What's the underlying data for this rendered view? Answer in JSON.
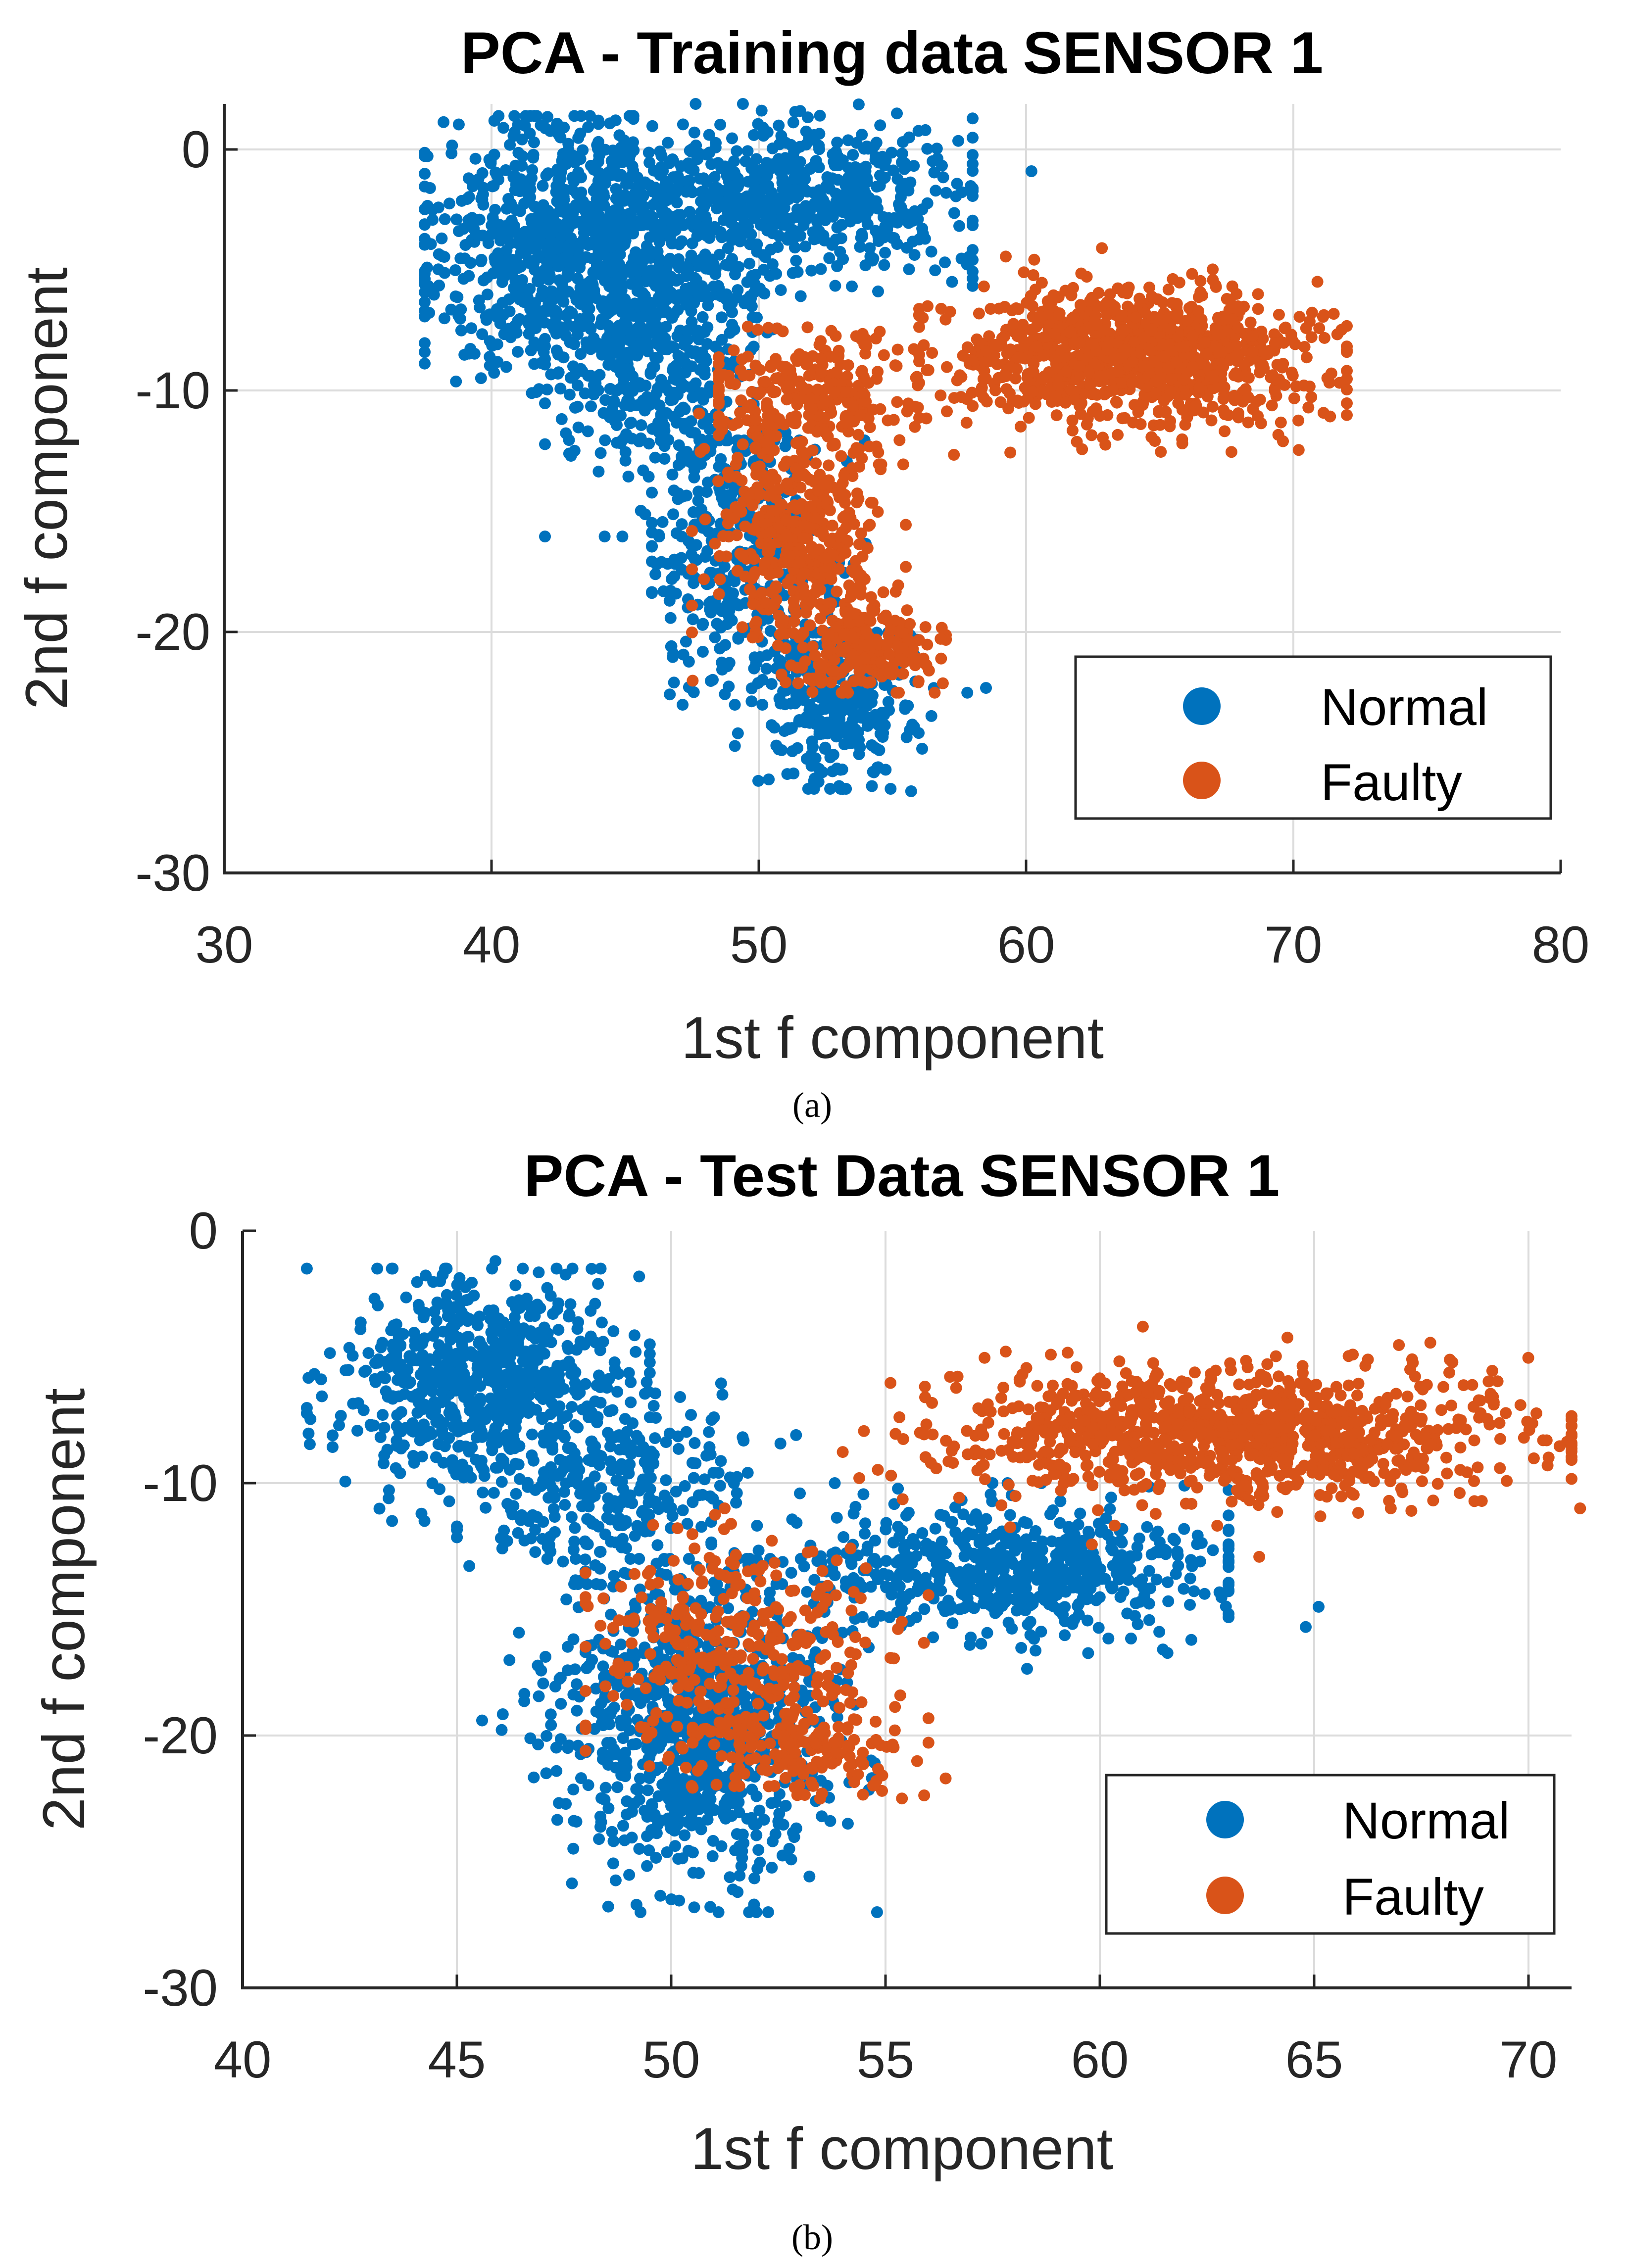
{
  "colors": {
    "normal": "#0072BD",
    "faulty": "#D95319"
  },
  "chart_data": [
    {
      "id": "a",
      "type": "scatter",
      "title": "PCA - Training data SENSOR 1",
      "xlabel": "1st f component",
      "ylabel": "2nd f component",
      "xlim": [
        30,
        80
      ],
      "ylim": [
        -30,
        2
      ],
      "xticks": [
        30,
        40,
        50,
        60,
        70,
        80
      ],
      "yticks": [
        0,
        -10,
        -20,
        -30
      ],
      "grid": true,
      "legend": {
        "placement": "bottom-right",
        "entries": [
          "Normal",
          "Faulty"
        ]
      },
      "caption": "(a)",
      "series": [
        {
          "name": "Normal",
          "color": "#0072BD",
          "clusters": [
            {
              "cx": 43,
              "cy": -4,
              "sx": 2.8,
              "sy": 2.6,
              "n": 900,
              "xr": [
                37.5,
                49
              ],
              "yr": [
                -12,
                1.5
              ]
            },
            {
              "cx": 51,
              "cy": -2,
              "sx": 3.5,
              "sy": 1.6,
              "n": 650,
              "xr": [
                44,
                58
              ],
              "yr": [
                -6,
                2
              ]
            },
            {
              "cx": 46.5,
              "cy": -9,
              "sx": 2,
              "sy": 3,
              "n": 400,
              "xr": [
                42,
                51
              ],
              "yr": [
                -16,
                -3
              ]
            },
            {
              "cx": 49.5,
              "cy": -17,
              "sx": 1.8,
              "sy": 3,
              "n": 350,
              "xr": [
                46,
                54
              ],
              "yr": [
                -23,
                -12
              ]
            },
            {
              "cx": 53,
              "cy": -23,
              "sx": 1.5,
              "sy": 1.7,
              "n": 300,
              "xr": [
                49,
                57
              ],
              "yr": [
                -26.5,
                -20
              ]
            }
          ],
          "points": [
            {
              "x": 58.5,
              "y": -22.3
            },
            {
              "x": 57.8,
              "y": -22.5
            },
            {
              "x": 55.7,
              "y": -26.6
            },
            {
              "x": 60.2,
              "y": -0.8
            },
            {
              "x": 37.7,
              "y": -1.5
            }
          ]
        },
        {
          "name": "Faulty",
          "color": "#D95319",
          "clusters": [
            {
              "cx": 64,
              "cy": -8.5,
              "sx": 3.3,
              "sy": 1.4,
              "n": 1000,
              "xr": [
                56,
                72
              ],
              "yr": [
                -13.5,
                -4
              ]
            },
            {
              "cx": 52,
              "cy": -10,
              "sx": 2,
              "sy": 1.4,
              "n": 250,
              "xr": [
                48.5,
                57
              ],
              "yr": [
                -13,
                -6
              ]
            },
            {
              "cx": 51.5,
              "cy": -16,
              "sx": 1.5,
              "sy": 2.4,
              "n": 450,
              "xr": [
                47.5,
                55.5
              ],
              "yr": [
                -22,
                -10
              ]
            },
            {
              "cx": 54,
              "cy": -20.5,
              "sx": 1.4,
              "sy": 1,
              "n": 200,
              "xr": [
                51,
                57
              ],
              "yr": [
                -22.5,
                -18
              ]
            }
          ],
          "points": [
            {
              "x": 71.8,
              "y": -7.4
            },
            {
              "x": 70.9,
              "y": -5.4
            },
            {
              "x": 70.2,
              "y": -12.4
            },
            {
              "x": 57.3,
              "y": -12.6
            }
          ]
        }
      ]
    },
    {
      "id": "b",
      "type": "scatter",
      "title": "PCA - Test Data SENSOR 1",
      "xlabel": "1st f component",
      "ylabel": "2nd f component",
      "xlim": [
        40,
        71
      ],
      "ylim": [
        -30,
        0
      ],
      "xticks": [
        40,
        45,
        50,
        55,
        60,
        65,
        70
      ],
      "yticks": [
        0,
        -10,
        -20,
        -30
      ],
      "grid": true,
      "legend": {
        "placement": "bottom-right",
        "entries": [
          "Normal",
          "Faulty"
        ]
      },
      "caption": "(b)",
      "series": [
        {
          "name": "Normal",
          "color": "#0072BD",
          "clusters": [
            {
              "cx": 45.5,
              "cy": -6,
              "sx": 1.6,
              "sy": 2,
              "n": 700,
              "xr": [
                41.5,
                49.5
              ],
              "yr": [
                -11.5,
                -1.5
              ]
            },
            {
              "cx": 48.5,
              "cy": -10,
              "sx": 1.6,
              "sy": 1.8,
              "n": 300,
              "xr": [
                45,
                53
              ],
              "yr": [
                -14,
                -6
              ]
            },
            {
              "cx": 50.5,
              "cy": -19.5,
              "sx": 1.6,
              "sy": 3,
              "n": 900,
              "xr": [
                45.5,
                55.5
              ],
              "yr": [
                -27,
                -13
              ]
            },
            {
              "cx": 58,
              "cy": -13.5,
              "sx": 2.5,
              "sy": 1.3,
              "n": 600,
              "xr": [
                52,
                63
              ],
              "yr": [
                -18,
                -10
              ]
            }
          ],
          "points": [
            {
              "x": 45.9,
              "y": -1.2
            },
            {
              "x": 64.8,
              "y": -15.7
            },
            {
              "x": 65.1,
              "y": -14.9
            },
            {
              "x": 54.8,
              "y": -27
            }
          ]
        },
        {
          "name": "Faulty",
          "color": "#D95319",
          "clusters": [
            {
              "cx": 63,
              "cy": -8,
              "sx": 3.3,
              "sy": 1.3,
              "n": 1100,
              "xr": [
                54,
                71
              ],
              "yr": [
                -14,
                -4
              ]
            },
            {
              "cx": 51.5,
              "cy": -16.5,
              "sx": 1.7,
              "sy": 2.2,
              "n": 350,
              "xr": [
                48,
                56
              ],
              "yr": [
                -22,
                -11
              ]
            },
            {
              "cx": 53,
              "cy": -20.5,
              "sx": 1.3,
              "sy": 0.9,
              "n": 150,
              "xr": [
                50.5,
                56
              ],
              "yr": [
                -22.5,
                -18
              ]
            }
          ],
          "points": [
            {
              "x": 71.2,
              "y": -11
            },
            {
              "x": 61.0,
              "y": -3.8
            },
            {
              "x": 56.4,
              "y": -21.7
            }
          ]
        }
      ]
    }
  ]
}
